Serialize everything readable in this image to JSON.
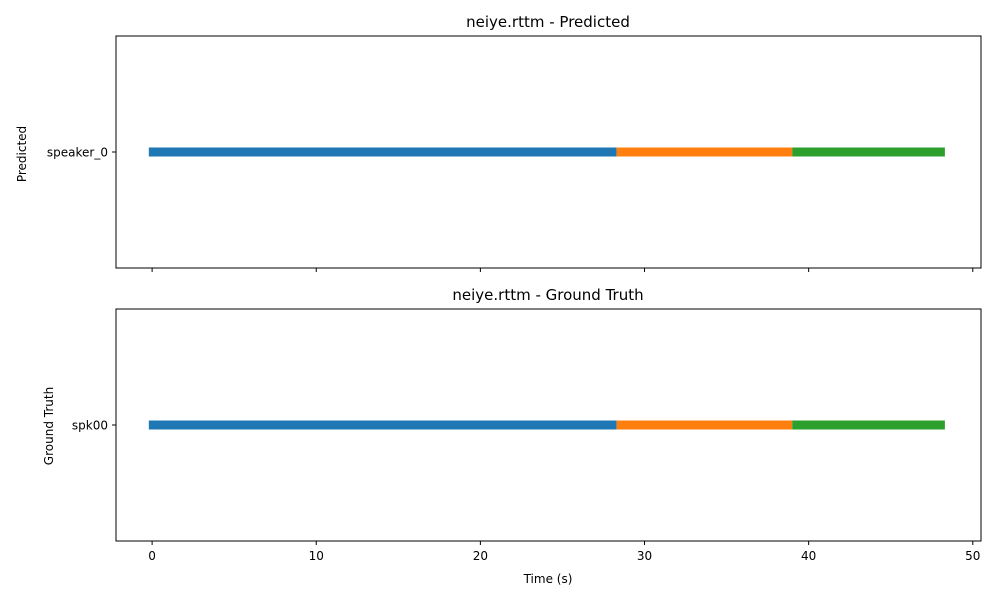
{
  "chart_data": [
    {
      "type": "timeline",
      "title": "neiye.rttm - Predicted",
      "ylabel": "Predicted",
      "xlabel": "",
      "xlim": [
        -2.2,
        50.5
      ],
      "xticks": [
        0,
        10,
        20,
        30,
        40,
        50
      ],
      "show_xtick_labels": false,
      "grid": false,
      "rows": [
        "speaker_0"
      ],
      "segments": [
        {
          "row": "speaker_0",
          "start": -0.2,
          "end": 28.3,
          "color": "#1f77b4"
        },
        {
          "row": "speaker_0",
          "start": 28.3,
          "end": 39.0,
          "color": "#ff7f0e"
        },
        {
          "row": "speaker_0",
          "start": 39.0,
          "end": 48.3,
          "color": "#2ca02c"
        }
      ]
    },
    {
      "type": "timeline",
      "title": "neiye.rttm - Ground Truth",
      "ylabel": "Ground Truth",
      "xlabel": "Time (s)",
      "xlim": [
        -2.2,
        50.5
      ],
      "xticks": [
        0,
        10,
        20,
        30,
        40,
        50
      ],
      "show_xtick_labels": true,
      "grid": false,
      "rows": [
        "spk00"
      ],
      "segments": [
        {
          "row": "spk00",
          "start": -0.2,
          "end": 28.3,
          "color": "#1f77b4"
        },
        {
          "row": "spk00",
          "start": 28.3,
          "end": 39.0,
          "color": "#ff7f0e"
        },
        {
          "row": "spk00",
          "start": 39.0,
          "end": 48.3,
          "color": "#2ca02c"
        }
      ]
    }
  ]
}
